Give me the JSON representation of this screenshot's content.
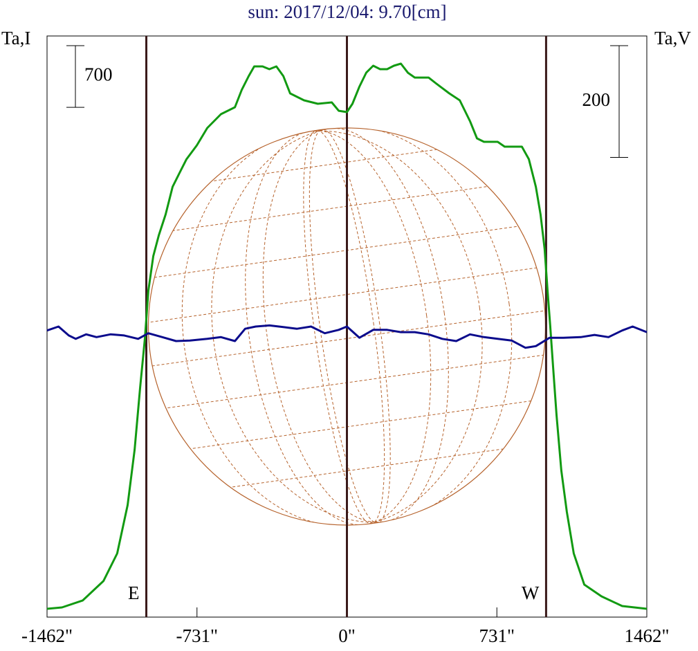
{
  "chart_data": {
    "type": "line",
    "title": "sun: 2017/12/04: 9.70[cm]",
    "ylabel": "Ta,I",
    "y2label": "Ta,V",
    "xlim": [
      -1462,
      1462
    ],
    "xticks": [
      {
        "value": -1462,
        "label": "-1462\""
      },
      {
        "value": -731,
        "label": "-731\""
      },
      {
        "value": 0,
        "label": "0\""
      },
      {
        "value": 731,
        "label": "731\""
      },
      {
        "value": 1462,
        "label": "1462\""
      }
    ],
    "ylim": [
      -100,
      6500
    ],
    "y2lim": [
      -520,
      520
    ],
    "scale_bars": [
      {
        "value": 700,
        "axis": "y"
      },
      {
        "value": 200,
        "axis": "y2"
      }
    ],
    "vlines": [
      -978,
      0,
      971
    ],
    "annotations": [
      {
        "text": "E",
        "x": -978
      },
      {
        "text": "W",
        "x": 971
      }
    ],
    "disk_radius": 968,
    "series": [
      {
        "name": "Ta,I",
        "color": "#129a12",
        "x": [
          -1462,
          -1389,
          -1288,
          -1187,
          -1120,
          -1069,
          -1035,
          -1008,
          -985,
          -968,
          -944,
          -917,
          -884,
          -850,
          -816,
          -782,
          -732,
          -681,
          -614,
          -546,
          -513,
          -479,
          -452,
          -411,
          -378,
          -344,
          -310,
          -277,
          -209,
          -142,
          -74,
          -40,
          0,
          27,
          61,
          94,
          128,
          162,
          196,
          229,
          263,
          297,
          331,
          398,
          432,
          499,
          550,
          600,
          634,
          668,
          735,
          769,
          853,
          887,
          921,
          944,
          964,
          978,
          991,
          1005,
          1022,
          1045,
          1072,
          1106,
          1157,
          1241,
          1342,
          1462
        ],
        "values": [
          -6,
          10,
          89,
          309,
          623,
          1173,
          1801,
          2509,
          3059,
          3609,
          4001,
          4237,
          4473,
          4787,
          4944,
          5101,
          5258,
          5455,
          5612,
          5691,
          5887,
          6044,
          6154,
          6154,
          6123,
          6154,
          6044,
          5848,
          5769,
          5730,
          5746,
          5651,
          5636,
          5730,
          5926,
          6083,
          6162,
          6123,
          6123,
          6162,
          6186,
          6083,
          6028,
          6028,
          5966,
          5848,
          5769,
          5533,
          5337,
          5298,
          5298,
          5243,
          5243,
          5101,
          4787,
          4473,
          4080,
          3609,
          3216,
          2744,
          2194,
          1566,
          1094,
          623,
          269,
          136,
          26,
          -6
        ]
      },
      {
        "name": "Ta,V",
        "color": "#0b0b8c",
        "axis": "y2",
        "x": [
          -1462,
          -1406,
          -1356,
          -1322,
          -1271,
          -1221,
          -1153,
          -1086,
          -1018,
          -968,
          -900,
          -833,
          -766,
          -681,
          -614,
          -546,
          -496,
          -445,
          -378,
          -310,
          -243,
          -175,
          -108,
          -40,
          0,
          61,
          128,
          196,
          263,
          331,
          398,
          465,
          533,
          600,
          668,
          735,
          803,
          870,
          921,
          988,
          1055,
          1140,
          1207,
          1275,
          1342,
          1393,
          1462
        ],
        "values": [
          -7,
          0,
          -16,
          -22,
          -14,
          -19,
          -14,
          -16,
          -22,
          -12,
          -19,
          -26,
          -25,
          -22,
          -19,
          -26,
          -4,
          0,
          2,
          -1,
          -4,
          0,
          -12,
          -6,
          0,
          -20,
          -6,
          -6,
          -10,
          -10,
          -14,
          -22,
          -26,
          -14,
          -19,
          -22,
          -25,
          -38,
          -35,
          -20,
          -20,
          -19,
          -15,
          -19,
          -7,
          0,
          -10
        ]
      }
    ]
  }
}
